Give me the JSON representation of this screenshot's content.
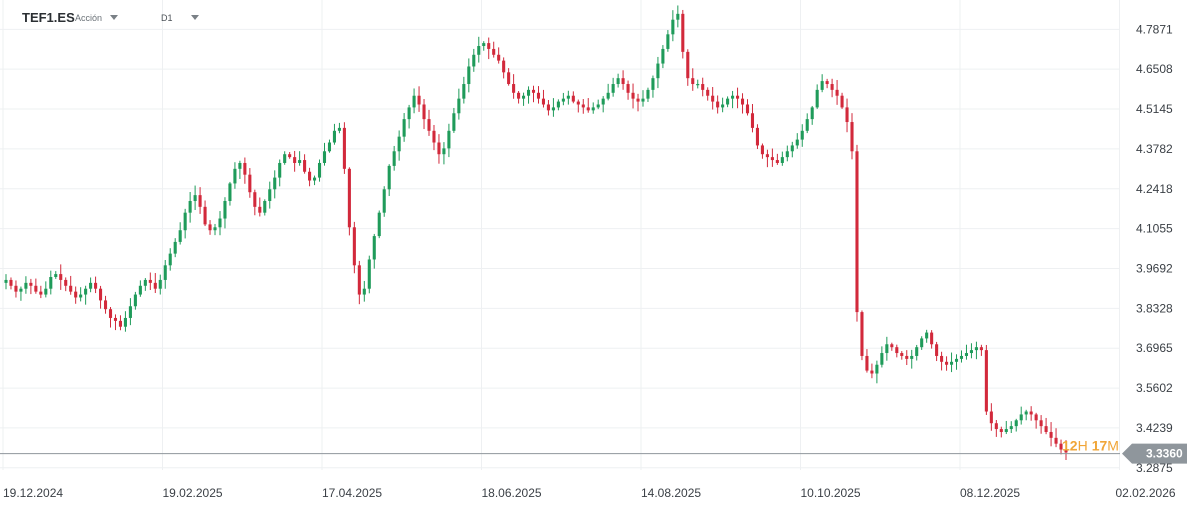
{
  "header": {
    "symbol": "TEF1.ES",
    "asset_type": "Acción",
    "timeframe": "D1"
  },
  "colors": {
    "up": "#1f9b5a",
    "down": "#d2293b",
    "grid": "#eef0f2",
    "axis_text": "#3b4046",
    "price_badge": "#8f969c",
    "countdown": "#f0a537"
  },
  "chart_data": {
    "type": "candlestick",
    "y_ticks": [
      "4.7871",
      "4.6508",
      "4.5145",
      "4.3782",
      "4.2418",
      "4.1055",
      "3.9692",
      "3.8328",
      "3.6965",
      "3.5602",
      "3.4239",
      "3.2875"
    ],
    "x_ticks": [
      "19.12.2024",
      "19.02.2025",
      "17.04.2025",
      "18.06.2025",
      "14.08.2025",
      "10.10.2025",
      "08.12.2025",
      "02.02.2026"
    ],
    "ylim": [
      3.28,
      4.86
    ],
    "current_price": "3.3360",
    "countdown": {
      "hours": "12",
      "h_unit": "H",
      "minutes": "17",
      "m_unit": "M"
    },
    "grid": true,
    "closes": [
      3.93,
      3.91,
      3.89,
      3.9,
      3.92,
      3.91,
      3.89,
      3.88,
      3.9,
      3.94,
      3.95,
      3.93,
      3.91,
      3.89,
      3.87,
      3.88,
      3.9,
      3.92,
      3.9,
      3.86,
      3.83,
      3.8,
      3.79,
      3.77,
      3.8,
      3.84,
      3.88,
      3.91,
      3.93,
      3.92,
      3.9,
      3.93,
      3.98,
      4.02,
      4.06,
      4.1,
      4.16,
      4.2,
      4.22,
      4.18,
      4.12,
      4.1,
      4.11,
      4.14,
      4.2,
      4.26,
      4.31,
      4.33,
      4.29,
      4.23,
      4.18,
      4.16,
      4.2,
      4.24,
      4.28,
      4.33,
      4.36,
      4.35,
      4.33,
      4.34,
      4.3,
      4.27,
      4.28,
      4.33,
      4.37,
      4.4,
      4.44,
      4.45,
      4.31,
      4.11,
      3.98,
      3.88,
      3.9,
      4.0,
      4.08,
      4.16,
      4.24,
      4.32,
      4.37,
      4.42,
      4.48,
      4.52,
      4.56,
      4.53,
      4.48,
      4.44,
      4.4,
      4.36,
      4.38,
      4.44,
      4.5,
      4.55,
      4.6,
      4.66,
      4.7,
      4.73,
      4.74,
      4.72,
      4.7,
      4.68,
      4.64,
      4.6,
      4.57,
      4.55,
      4.56,
      4.58,
      4.57,
      4.55,
      4.53,
      4.51,
      4.52,
      4.54,
      4.55,
      4.56,
      4.54,
      4.53,
      4.52,
      4.51,
      4.52,
      4.53,
      4.55,
      4.57,
      4.6,
      4.62,
      4.6,
      4.57,
      4.55,
      4.54,
      4.55,
      4.58,
      4.62,
      4.67,
      4.72,
      4.77,
      4.82,
      4.84,
      4.71,
      4.62,
      4.6,
      4.6,
      4.58,
      4.56,
      4.54,
      4.52,
      4.53,
      4.55,
      4.56,
      4.55,
      4.53,
      4.5,
      4.45,
      4.39,
      4.36,
      4.35,
      4.34,
      4.33,
      4.35,
      4.37,
      4.39,
      4.41,
      4.44,
      4.48,
      4.52,
      4.58,
      4.61,
      4.6,
      4.58,
      4.56,
      4.52,
      4.47,
      4.37,
      3.82,
      3.67,
      3.62,
      3.61,
      3.64,
      3.68,
      3.71,
      3.7,
      3.68,
      3.67,
      3.66,
      3.67,
      3.7,
      3.73,
      3.75,
      3.71,
      3.67,
      3.65,
      3.64,
      3.65,
      3.66,
      3.67,
      3.68,
      3.69,
      3.7,
      3.69,
      3.48,
      3.44,
      3.42,
      3.41,
      3.42,
      3.43,
      3.45,
      3.47,
      3.48,
      3.47,
      3.45,
      3.43,
      3.41,
      3.39,
      3.37,
      3.35,
      3.34
    ]
  }
}
